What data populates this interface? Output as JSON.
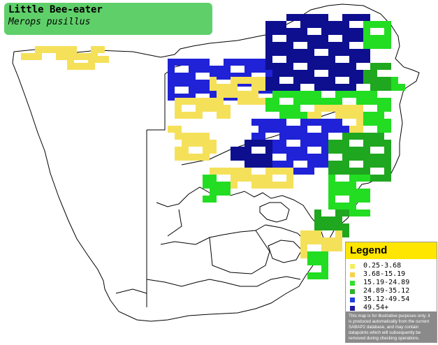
{
  "title": {
    "common_name": "Little Bee-eater",
    "scientific_name": "Merops pusillus"
  },
  "legend": {
    "heading": "Legend",
    "heading_color": "#ffe600",
    "items": [
      {
        "label": "0.25-3.68",
        "color": "#f3ee62"
      },
      {
        "label": "3.68-15.19",
        "color": "#f7d24a"
      },
      {
        "label": "15.19-24.89",
        "color": "#2fe02f"
      },
      {
        "label": "24.89-35.12",
        "color": "#2fb02f"
      },
      {
        "label": "35.12-49.54",
        "color": "#1f3fe0"
      },
      {
        "label": "49.54+",
        "color": "#1c1c9e"
      }
    ],
    "disclaimer": "This map is for illustrative purposes only; it is produced automatically from the current SABAP2 database, and may contain datapoints which will subsequently be removed during checking operations."
  },
  "map_colors": {
    "yellow": "#f5e05a",
    "green": "#22dd22",
    "dark_green": "#1fa71f",
    "blue": "#1f22d6",
    "dark_blue": "#0d0f8f",
    "border": "#000000"
  }
}
